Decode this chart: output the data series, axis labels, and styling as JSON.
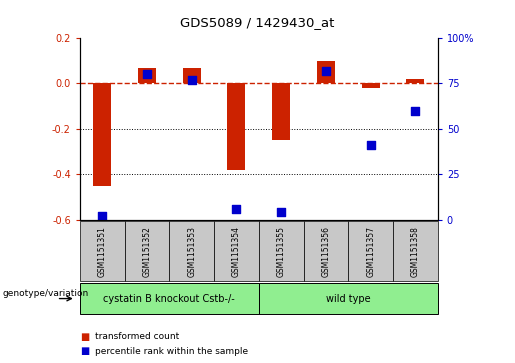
{
  "title": "GDS5089 / 1429430_at",
  "samples": [
    "GSM1151351",
    "GSM1151352",
    "GSM1151353",
    "GSM1151354",
    "GSM1151355",
    "GSM1151356",
    "GSM1151357",
    "GSM1151358"
  ],
  "red_values": [
    -0.45,
    0.07,
    0.07,
    -0.38,
    -0.25,
    0.1,
    -0.02,
    0.02
  ],
  "blue_percentiles": [
    2,
    80,
    77,
    6,
    4,
    82,
    41,
    60
  ],
  "ylim_left": [
    -0.6,
    0.2
  ],
  "ylim_right": [
    0,
    100
  ],
  "left_ticks": [
    0.2,
    0.0,
    -0.2,
    -0.4,
    -0.6
  ],
  "right_ticks": [
    100,
    75,
    50,
    25,
    0
  ],
  "group1_label": "cystatin B knockout Cstb-/-",
  "group2_label": "wild type",
  "legend_red": "transformed count",
  "legend_blue": "percentile rank within the sample",
  "genotype_label": "genotype/variation",
  "red_color": "#cc2200",
  "blue_color": "#0000cc",
  "green_color": "#90EE90",
  "gray_color": "#c8c8c8",
  "bar_width": 0.4,
  "blue_marker_size": 36
}
